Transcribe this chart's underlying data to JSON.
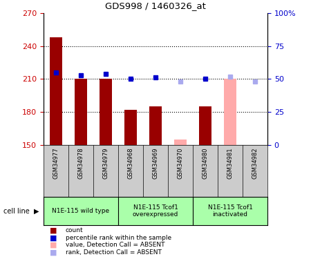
{
  "title": "GDS998 / 1460326_at",
  "samples": [
    "GSM34977",
    "GSM34978",
    "GSM34979",
    "GSM34968",
    "GSM34969",
    "GSM34970",
    "GSM34980",
    "GSM34981",
    "GSM34982"
  ],
  "count_values": [
    248,
    210,
    210,
    182,
    185,
    155,
    185,
    210,
    150
  ],
  "rank_values": [
    55,
    53,
    54,
    50,
    51,
    48,
    50,
    52,
    48
  ],
  "absent_flags": [
    false,
    false,
    false,
    false,
    false,
    true,
    false,
    true,
    true
  ],
  "ylim_left": [
    150,
    270
  ],
  "ylim_right": [
    0,
    100
  ],
  "yticks_left": [
    150,
    180,
    210,
    240,
    270
  ],
  "yticks_right": [
    0,
    25,
    50,
    75,
    100
  ],
  "yticklabels_right": [
    "0",
    "25",
    "50",
    "75",
    "100%"
  ],
  "color_present_bar": "#990000",
  "color_absent_bar": "#ffaaaa",
  "color_present_rank": "#0000cc",
  "color_absent_rank": "#aaaaee",
  "grid_color": "black",
  "group_labels": [
    "N1E-115 wild type",
    "N1E-115 Tcof1\noverexpressed",
    "N1E-115 Tcof1\ninactivated"
  ],
  "group_color": "#aaffaa",
  "tick_bg_color": "#cccccc",
  "legend_items": [
    {
      "label": "count",
      "color": "#990000"
    },
    {
      "label": "percentile rank within the sample",
      "color": "#0000cc"
    },
    {
      "label": "value, Detection Call = ABSENT",
      "color": "#ffaaaa"
    },
    {
      "label": "rank, Detection Call = ABSENT",
      "color": "#aaaaee"
    }
  ],
  "background_color": "#ffffff",
  "plot_bg_color": "#ffffff",
  "label_color_left": "#cc0000",
  "label_color_right": "#0000cc"
}
